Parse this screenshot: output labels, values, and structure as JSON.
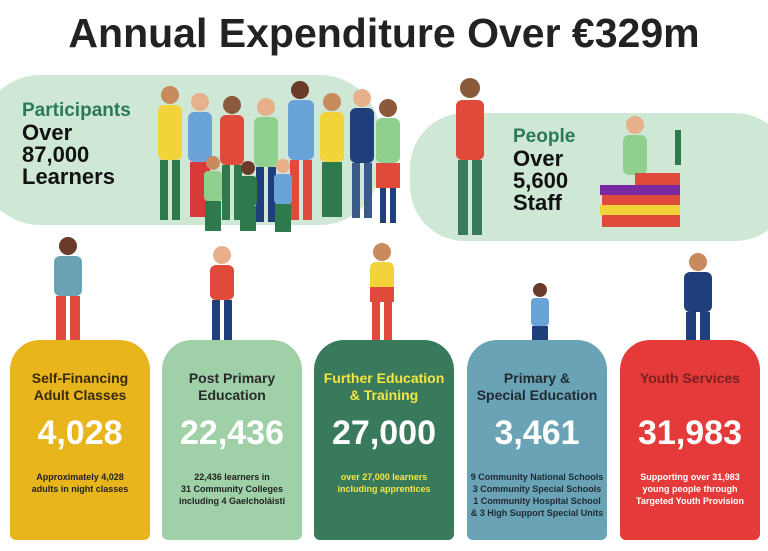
{
  "header": {
    "title": "Annual Expenditure Over €329m"
  },
  "participants": {
    "label": "Participants",
    "lines": [
      "Over",
      "87,000",
      "Learners"
    ]
  },
  "people": {
    "label": "People",
    "lines": [
      "Over",
      "5,600",
      "Staff"
    ]
  },
  "cards": [
    {
      "title": [
        "Self-Financing",
        "Adult Classes"
      ],
      "figure": "4,028",
      "description": [
        "Approximately 4,028",
        "adults in night classes"
      ]
    },
    {
      "title": [
        "Post Primary",
        "Education"
      ],
      "figure": "22,436",
      "description": [
        "22,436 learners in",
        "31 Community Colleges",
        "including 4 Gaelcholáistí"
      ]
    },
    {
      "title": [
        "Further Education",
        "& Training"
      ],
      "figure": "27,000",
      "description": [
        "over 27,000 learners",
        "including apprentices"
      ]
    },
    {
      "title": [
        "Primary &",
        "Special Education"
      ],
      "figure": "3,461",
      "description": [
        "9 Community National Schools",
        "3 Community Special Schools",
        "1 Community Hospital School",
        "& 3 High Support Special Units"
      ]
    },
    {
      "title": [
        "Youth Services"
      ],
      "figure": "31,983",
      "description": [
        "Supporting over 31,983",
        "young people through",
        "Targeted Youth Provision"
      ]
    }
  ]
}
